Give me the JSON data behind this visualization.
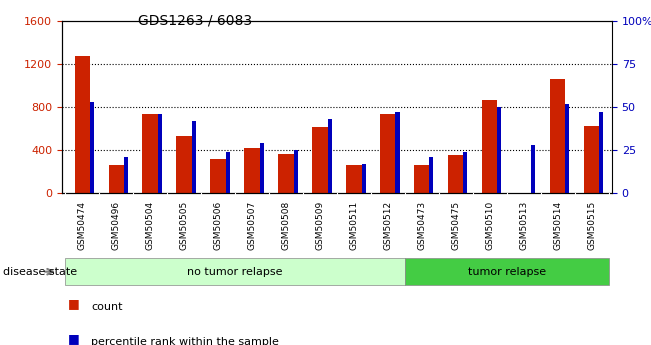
{
  "title": "GDS1263 / 6083",
  "samples": [
    "GSM50474",
    "GSM50496",
    "GSM50504",
    "GSM50505",
    "GSM50506",
    "GSM50507",
    "GSM50508",
    "GSM50509",
    "GSM50511",
    "GSM50512",
    "GSM50473",
    "GSM50475",
    "GSM50510",
    "GSM50513",
    "GSM50514",
    "GSM50515"
  ],
  "count_values": [
    1270,
    260,
    730,
    530,
    320,
    420,
    360,
    610,
    260,
    730,
    260,
    350,
    860,
    0,
    1060,
    620
  ],
  "percentile_values": [
    53,
    21,
    46,
    42,
    24,
    29,
    25,
    43,
    17,
    47,
    21,
    24,
    50,
    28,
    52,
    47
  ],
  "groups": [
    {
      "label": "no tumor relapse",
      "start": 0,
      "end": 10,
      "color": "#ccffcc"
    },
    {
      "label": "tumor relapse",
      "start": 10,
      "end": 16,
      "color": "#44cc44"
    }
  ],
  "ylim_left": [
    0,
    1600
  ],
  "ylim_right": [
    0,
    100
  ],
  "yticks_left": [
    0,
    400,
    800,
    1200,
    1600
  ],
  "yticks_right": [
    0,
    25,
    50,
    75,
    100
  ],
  "bar_color_red": "#cc2200",
  "bar_color_blue": "#0000bb",
  "grid_color": "black",
  "tick_label_color_left": "#cc2200",
  "tick_label_color_right": "#0000bb",
  "disease_state_label": "disease state",
  "legend_count": "count",
  "legend_percentile": "percentile rank within the sample",
  "red_bar_width": 0.45,
  "blue_bar_width": 0.12
}
